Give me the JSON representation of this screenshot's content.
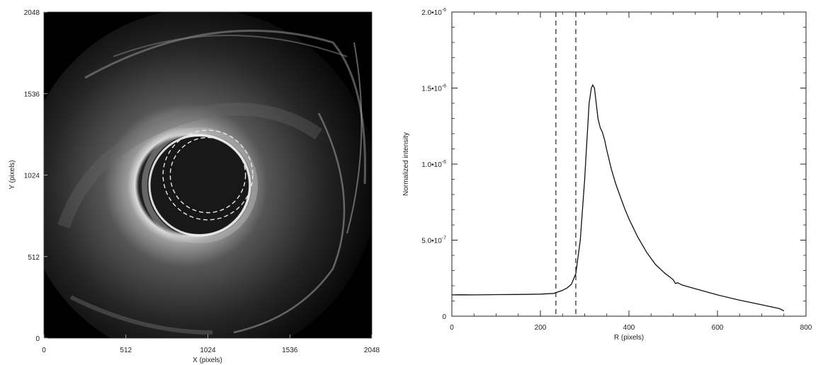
{
  "chart_data": [
    {
      "type": "heatmap",
      "description_visible": "grayscale image with two dashed circles near the center",
      "xlabel": "X (pixels)",
      "ylabel": "Y (pixels)",
      "xlim": [
        0,
        2048
      ],
      "ylim": [
        0,
        2048
      ],
      "x_ticks": [
        "0",
        "512",
        "1024",
        "1536",
        "2048"
      ],
      "y_ticks": [
        "0",
        "512",
        "1024",
        "1536",
        "2048"
      ],
      "circles": [
        {
          "style": "dashed",
          "center": [
            1024,
            1024
          ],
          "radius": 235
        },
        {
          "style": "dashed",
          "center": [
            1024,
            1024
          ],
          "radius": 280
        }
      ],
      "colors": {
        "background": "#000000",
        "circle": "#e8e8e8"
      }
    },
    {
      "type": "line",
      "xlabel": "R (pixels)",
      "ylabel": "Normalized intensity",
      "xlim": [
        0,
        800
      ],
      "ylim": [
        0,
        2e-06
      ],
      "x_ticks": [
        "0",
        "200",
        "400",
        "600",
        "800"
      ],
      "y_ticks": [
        {
          "value": 0,
          "label": "0"
        },
        {
          "value": 5e-07,
          "label": "5.0•10",
          "exp": "-7"
        },
        {
          "value": 1e-06,
          "label": "1.0•10",
          "exp": "-6"
        },
        {
          "value": 1.5e-06,
          "label": "1.5•10",
          "exp": "-6"
        },
        {
          "value": 2e-06,
          "label": "2.0•10",
          "exp": "-6"
        }
      ],
      "vlines": [
        {
          "x": 235,
          "style": "dashed"
        },
        {
          "x": 280,
          "style": "dashed"
        }
      ],
      "series": [
        {
          "x": [
            0,
            20,
            50,
            100,
            150,
            200,
            230,
            240,
            250,
            260,
            270,
            280,
            290,
            300,
            305,
            310,
            315,
            318,
            322,
            326,
            330,
            335,
            340,
            345,
            350,
            360,
            370,
            380,
            390,
            400,
            420,
            440,
            460,
            480,
            500,
            505,
            510,
            520,
            550,
            600,
            650,
            700,
            740,
            750
          ],
          "y": [
            1.4e-07,
            1.41e-07,
            1.4e-07,
            1.42e-07,
            1.43e-07,
            1.45e-07,
            1.5e-07,
            1.6e-07,
            1.7e-07,
            1.85e-07,
            2.1e-07,
            2.8e-07,
            5e-07,
            9e-07,
            1.15e-06,
            1.4e-06,
            1.5e-06,
            1.52e-06,
            1.5e-06,
            1.4e-06,
            1.3e-06,
            1.24e-06,
            1.21e-06,
            1.16e-06,
            1.09e-06,
            9.7e-07,
            8.7e-07,
            7.9e-07,
            7.1e-07,
            6.4e-07,
            5.2e-07,
            4.2e-07,
            3.4e-07,
            2.85e-07,
            2.4e-07,
            2.15e-07,
            2.2e-07,
            2.05e-07,
            1.8e-07,
            1.4e-07,
            1.05e-07,
            7.5e-08,
            5e-08,
            3.5e-08
          ]
        }
      ],
      "colors": {
        "line": "#111111"
      }
    }
  ]
}
